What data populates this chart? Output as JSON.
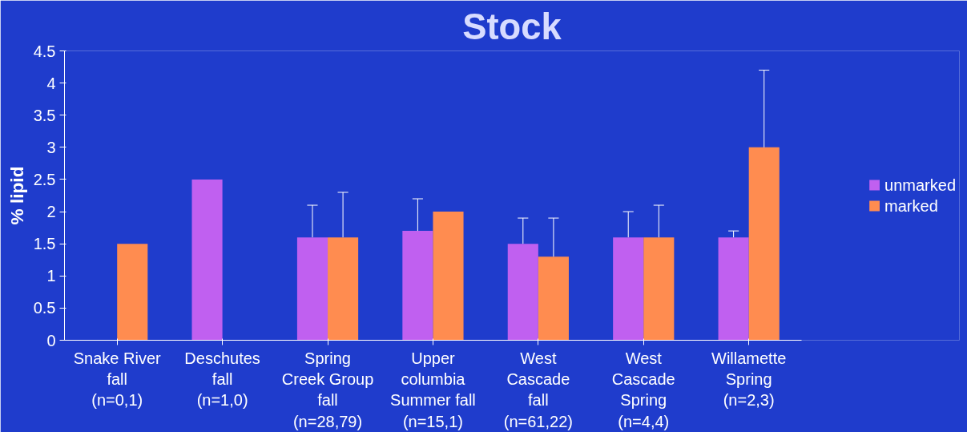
{
  "chart_data": {
    "type": "bar",
    "title": "Stock",
    "ylabel": "% lipid",
    "categories": [
      "Snake River fall (n=0,1)",
      "Deschutes fall (n=1,0)",
      "Spring Creek Group fall (n=28,79)",
      "Upper columbia Summer fall (n=15,1)",
      "West Cascade fall (n=61,22)",
      "West Cascade Spring (n=4,4)",
      "Willamette Spring (n=2,3)"
    ],
    "series": [
      {
        "name": "unmarked",
        "color": "#c060f0",
        "values": [
          null,
          2.5,
          1.6,
          1.7,
          1.5,
          1.6,
          1.6
        ],
        "errors": [
          null,
          null,
          [
            1.6,
            2.1
          ],
          [
            1.7,
            2.2
          ],
          [
            1.5,
            1.9
          ],
          [
            1.6,
            2.0
          ],
          [
            1.6,
            1.7
          ]
        ]
      },
      {
        "name": "marked",
        "color": "#ff8c50",
        "values": [
          1.5,
          null,
          1.6,
          2.0,
          1.3,
          1.6,
          3.0
        ],
        "errors": [
          null,
          null,
          [
            1.6,
            2.3
          ],
          null,
          [
            1.3,
            1.9
          ],
          [
            1.6,
            2.1
          ],
          [
            3.0,
            4.2
          ]
        ]
      }
    ],
    "ylim": [
      0,
      4.5
    ],
    "yticks": [
      0,
      0.5,
      1,
      1.5,
      2,
      2.5,
      3,
      3.5,
      4,
      4.5
    ],
    "grid": false,
    "legend": "right"
  }
}
